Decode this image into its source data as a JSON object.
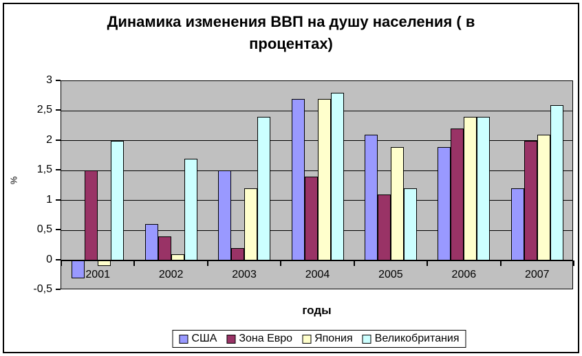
{
  "chart_data": {
    "type": "bar",
    "title": "Динамика изменения ВВП на душу населения ( в процентах)",
    "xlabel": "годы",
    "ylabel": "%",
    "categories": [
      "2001",
      "2002",
      "2003",
      "2004",
      "2005",
      "2006",
      "2007"
    ],
    "series": [
      {
        "name": "США",
        "color": "#9999ff",
        "values": [
          -0.3,
          0.6,
          1.5,
          2.7,
          2.1,
          1.9,
          1.2
        ]
      },
      {
        "name": "Зона Евро",
        "color": "#993366",
        "values": [
          1.5,
          0.4,
          0.2,
          1.4,
          1.1,
          2.2,
          2.0
        ]
      },
      {
        "name": "Япония",
        "color": "#ffffcc",
        "values": [
          -0.1,
          0.1,
          1.2,
          2.7,
          1.9,
          2.4,
          2.1
        ]
      },
      {
        "name": "Великобритания",
        "color": "#ccffff",
        "values": [
          2.0,
          1.7,
          2.4,
          2.8,
          1.2,
          2.4,
          2.6
        ]
      }
    ],
    "ylim": [
      -0.5,
      3
    ],
    "ytick_step": 0.5,
    "ytick_labels": [
      "3",
      "2,5",
      "2",
      "1,5",
      "1",
      "0,5",
      "0",
      "-0,5"
    ],
    "grid": true,
    "legend_position": "bottom",
    "plot_bg_color": "#c0c0c0",
    "gridline_color": "#000000"
  }
}
